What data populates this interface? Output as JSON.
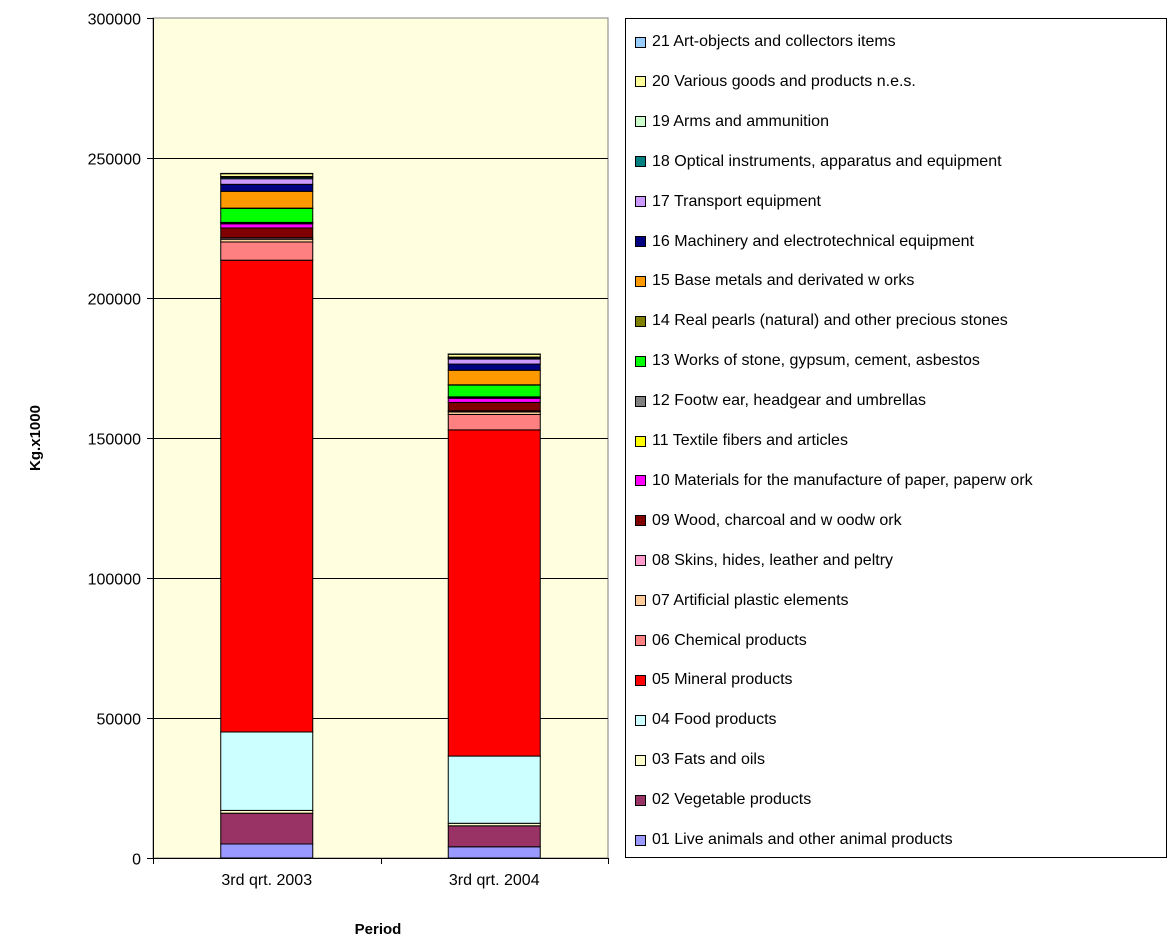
{
  "chart_data": {
    "type": "bar",
    "stacked": true,
    "title": "",
    "xlabel": "Period",
    "ylabel": "Kg.x1000",
    "ylim": [
      0,
      300000
    ],
    "yticks": [
      "0",
      "50000",
      "100000",
      "150000",
      "200000",
      "250000",
      "300000"
    ],
    "categories": [
      "3rd qrt. 2003",
      "3rd qrt. 2004"
    ],
    "legend_position": "right",
    "plot_background": "#FFFFE0",
    "series": [
      {
        "name": "01 Live animals and other animal products",
        "color": "#9999FF",
        "values": [
          5000,
          4000
        ]
      },
      {
        "name": "02 Vegetable products",
        "color": "#993366",
        "values": [
          11000,
          7500
        ]
      },
      {
        "name": "03 Fats and oils",
        "color": "#FFFFCC",
        "values": [
          1000,
          900
        ]
      },
      {
        "name": "04 Food products",
        "color": "#CCFFFF",
        "values": [
          28000,
          24000
        ]
      },
      {
        "name": "05 Mineral products",
        "color": "#FF0000",
        "values": [
          168500,
          116500
        ]
      },
      {
        "name": "06 Chemical products",
        "color": "#FF8080",
        "values": [
          6500,
          5500
        ]
      },
      {
        "name": "07 Artificial plastic elements",
        "color": "#FFCC99",
        "values": [
          1000,
          900
        ]
      },
      {
        "name": "08 Skins, hides, leather and peltry",
        "color": "#FF99CC",
        "values": [
          500,
          400
        ]
      },
      {
        "name": "09 Wood, charcoal and w oodw ork",
        "color": "#800000",
        "values": [
          3500,
          3000
        ]
      },
      {
        "name": "10 Materials for the manufacture of paper, paperw ork",
        "color": "#FF00FF",
        "values": [
          1500,
          1500
        ]
      },
      {
        "name": "11 Textile fibers and articles",
        "color": "#FFFF00",
        "values": [
          300,
          300
        ]
      },
      {
        "name": "12 Footw ear, headgear and umbrellas",
        "color": "#808080",
        "values": [
          200,
          200
        ]
      },
      {
        "name": "13 Works of stone, gypsum, cement, asbestos",
        "color": "#00FF00",
        "values": [
          5000,
          4200
        ]
      },
      {
        "name": "14 Real pearls (natural) and other precious stones",
        "color": "#808000",
        "values": [
          100,
          100
        ]
      },
      {
        "name": "15 Base metals and derivated w orks",
        "color": "#FF9900",
        "values": [
          6000,
          5200
        ]
      },
      {
        "name": "16 Machinery and electrotechnical equipment",
        "color": "#000080",
        "values": [
          2500,
          2200
        ]
      },
      {
        "name": "17 Transport equipment",
        "color": "#CC99FF",
        "values": [
          2000,
          1800
        ]
      },
      {
        "name": "18 Optical instruments, apparatus and equipment",
        "color": "#008080",
        "values": [
          500,
          400
        ]
      },
      {
        "name": "19 Arms and ammunition",
        "color": "#CCFFCC",
        "values": [
          300,
          300
        ]
      },
      {
        "name": "20 Various goods and products n.e.s.",
        "color": "#FFFF99",
        "values": [
          1000,
          1000
        ]
      },
      {
        "name": "21 Art-objects and collectors items",
        "color": "#99CCFF",
        "values": [
          100,
          100
        ]
      }
    ]
  }
}
